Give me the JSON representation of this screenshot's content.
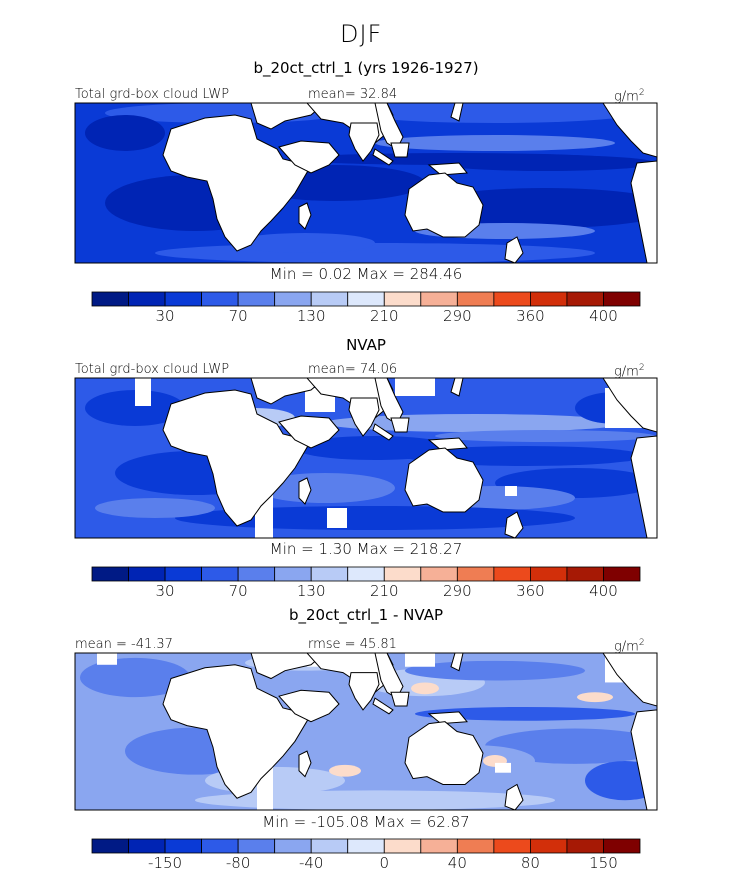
{
  "season": "DJF",
  "colors": [
    "#001a85",
    "#0024b4",
    "#0a3ad6",
    "#2d5ae8",
    "#5a7fec",
    "#8aa6f0",
    "#b8cbf6",
    "#dde8fc",
    "#fcdccb",
    "#f6b097",
    "#ef7d53",
    "#ec4a1c",
    "#d22f0a",
    "#a61905",
    "#7f0000"
  ],
  "panels": [
    {
      "title": "b_20ct_ctrl_1 (yrs 1926-1927)",
      "left_label": "Total grd-box cloud LWP",
      "stat_label": "mean=  32.84",
      "units": "g/m",
      "units_sup": "2",
      "minmax": "Min =    0.02 Max = 284.46",
      "ticks": [
        "30",
        "70",
        "130",
        "210",
        "290",
        "360",
        "400"
      ],
      "field": "model"
    },
    {
      "title": "NVAP",
      "left_label": "Total grd-box cloud LWP",
      "stat_label": "mean=  74.06",
      "units": "g/m",
      "units_sup": "2",
      "minmax": "Min =    1.30 Max = 218.27",
      "ticks": [
        "30",
        "70",
        "130",
        "210",
        "290",
        "360",
        "400"
      ],
      "field": "obs"
    },
    {
      "title": "b_20ct_ctrl_1 - NVAP",
      "left_label": "mean = -41.37",
      "stat_label": "rmse =  45.81",
      "units": "g/m",
      "units_sup": "2",
      "minmax": "Min = -105.08 Max =  62.87",
      "ticks": [
        "-150",
        "-80",
        "-40",
        "0",
        "40",
        "80",
        "150"
      ],
      "field": "diff"
    }
  ],
  "chart_data": [
    {
      "type": "heatmap",
      "title": "b_20ct_ctrl_1 (yrs 1926-1927)",
      "variable": "Total grd-box cloud LWP",
      "units": "g/m2",
      "mean": 32.84,
      "min": 0.02,
      "max": 284.46,
      "colorbar_ticks": [
        30,
        70,
        130,
        210,
        290,
        360,
        400
      ]
    },
    {
      "type": "heatmap",
      "title": "NVAP",
      "variable": "Total grd-box cloud LWP",
      "units": "g/m2",
      "mean": 74.06,
      "min": 1.3,
      "max": 218.27,
      "colorbar_ticks": [
        30,
        70,
        130,
        210,
        290,
        360,
        400
      ]
    },
    {
      "type": "heatmap",
      "title": "b_20ct_ctrl_1 - NVAP",
      "units": "g/m2",
      "mean": -41.37,
      "rmse": 45.81,
      "min": -105.08,
      "max": 62.87,
      "colorbar_ticks": [
        -150,
        -80,
        -40,
        0,
        40,
        80,
        150
      ]
    }
  ]
}
